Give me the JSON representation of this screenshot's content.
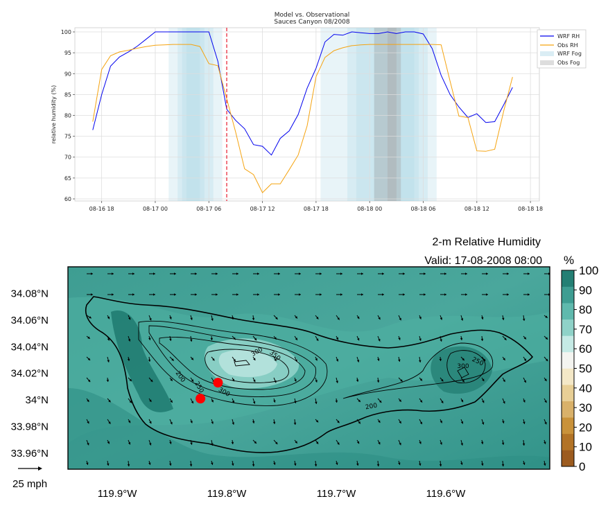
{
  "chart_data": [
    {
      "type": "line",
      "title": "Model vs. Observational",
      "subtitle": "Sauces Canyon 08/2008",
      "xlabel": "",
      "ylabel": "relative humidity (%)",
      "ylim": [
        59.5,
        101
      ],
      "xlim": [
        "2008-08-16 15:00",
        "2008-08-18 19:00"
      ],
      "x_ticks": [
        "08-16 18",
        "08-17 00",
        "08-17 06",
        "08-17 12",
        "08-17 18",
        "08-18 00",
        "08-18 06",
        "08-18 12",
        "08-18 18"
      ],
      "y_ticks": [
        60,
        65,
        70,
        75,
        80,
        85,
        90,
        95,
        100
      ],
      "grid": true,
      "legend_position": "top-right",
      "vline": {
        "x": "2008-08-17 08:00",
        "color": "#e8192c",
        "style": "dashed"
      },
      "series": [
        {
          "name": "WRF RH",
          "color": "#0000ee",
          "points": [
            [
              "2008-08-16 17:00",
              76.5
            ],
            [
              "2008-08-16 18:00",
              85
            ],
            [
              "2008-08-16 19:00",
              91.8
            ],
            [
              "2008-08-16 20:00",
              94
            ],
            [
              "2008-08-16 21:00",
              95.2
            ],
            [
              "2008-08-16 22:00",
              96.6
            ],
            [
              "2008-08-16 23:00",
              98.3
            ],
            [
              "2008-08-17 00:00",
              100
            ],
            [
              "2008-08-17 01:00",
              100
            ],
            [
              "2008-08-17 02:00",
              100
            ],
            [
              "2008-08-17 03:00",
              100
            ],
            [
              "2008-08-17 04:00",
              100
            ],
            [
              "2008-08-17 05:00",
              100
            ],
            [
              "2008-08-17 06:00",
              100
            ],
            [
              "2008-08-17 07:00",
              93
            ],
            [
              "2008-08-17 08:00",
              81.5
            ],
            [
              "2008-08-17 09:00",
              78.8
            ],
            [
              "2008-08-17 10:00",
              76.8
            ],
            [
              "2008-08-17 11:00",
              73
            ],
            [
              "2008-08-17 12:00",
              72.6
            ],
            [
              "2008-08-17 13:00",
              70.5
            ],
            [
              "2008-08-17 14:00",
              74.5
            ],
            [
              "2008-08-17 15:00",
              76.3
            ],
            [
              "2008-08-17 16:00",
              80.2
            ],
            [
              "2008-08-17 17:00",
              86.5
            ],
            [
              "2008-08-17 18:00",
              91.3
            ],
            [
              "2008-08-17 19:00",
              97.6
            ],
            [
              "2008-08-17 20:00",
              99.4
            ],
            [
              "2008-08-17 21:00",
              99.2
            ],
            [
              "2008-08-17 22:00",
              100
            ],
            [
              "2008-08-17 23:00",
              99.8
            ],
            [
              "2008-08-18 00:00",
              99.6
            ],
            [
              "2008-08-18 01:00",
              99.6
            ],
            [
              "2008-08-18 02:00",
              100
            ],
            [
              "2008-08-18 03:00",
              99.6
            ],
            [
              "2008-08-18 04:00",
              100
            ],
            [
              "2008-08-18 05:00",
              100
            ],
            [
              "2008-08-18 06:00",
              99.5
            ],
            [
              "2008-08-18 07:00",
              96
            ],
            [
              "2008-08-18 08:00",
              89.6
            ],
            [
              "2008-08-18 09:00",
              85
            ],
            [
              "2008-08-18 10:00",
              82
            ],
            [
              "2008-08-18 11:00",
              79.5
            ],
            [
              "2008-08-18 12:00",
              80.4
            ],
            [
              "2008-08-18 13:00",
              78.3
            ],
            [
              "2008-08-18 14:00",
              78.5
            ],
            [
              "2008-08-18 15:00",
              82.5
            ],
            [
              "2008-08-18 16:00",
              86.7
            ]
          ]
        },
        {
          "name": "Obs RH",
          "color": "#f5a30f",
          "points": [
            [
              "2008-08-16 17:00",
              78.5
            ],
            [
              "2008-08-16 18:00",
              91
            ],
            [
              "2008-08-16 19:00",
              94.3
            ],
            [
              "2008-08-16 20:00",
              95.2
            ],
            [
              "2008-08-16 21:00",
              95.6
            ],
            [
              "2008-08-16 22:00",
              96.1
            ],
            [
              "2008-08-16 23:00",
              96.5
            ],
            [
              "2008-08-17 00:00",
              96.8
            ],
            [
              "2008-08-17 01:00",
              96.9
            ],
            [
              "2008-08-17 02:00",
              97
            ],
            [
              "2008-08-17 03:00",
              97
            ],
            [
              "2008-08-17 04:00",
              97
            ],
            [
              "2008-08-17 05:00",
              96.5
            ],
            [
              "2008-08-17 06:00",
              92.4
            ],
            [
              "2008-08-17 07:00",
              91.9
            ],
            [
              "2008-08-17 08:00",
              84
            ],
            [
              "2008-08-17 09:00",
              76
            ],
            [
              "2008-08-17 10:00",
              67.2
            ],
            [
              "2008-08-17 11:00",
              65.8
            ],
            [
              "2008-08-17 12:00",
              61.5
            ],
            [
              "2008-08-17 13:00",
              63.6
            ],
            [
              "2008-08-17 14:00",
              63.6
            ],
            [
              "2008-08-17 15:00",
              67
            ],
            [
              "2008-08-17 16:00",
              70.5
            ],
            [
              "2008-08-17 17:00",
              77.5
            ],
            [
              "2008-08-17 18:00",
              89.3
            ],
            [
              "2008-08-17 19:00",
              93.9
            ],
            [
              "2008-08-17 20:00",
              95.5
            ],
            [
              "2008-08-17 21:00",
              96.2
            ],
            [
              "2008-08-17 22:00",
              96.7
            ],
            [
              "2008-08-17 23:00",
              96.9
            ],
            [
              "2008-08-18 00:00",
              97
            ],
            [
              "2008-08-18 01:00",
              97
            ],
            [
              "2008-08-18 02:00",
              97
            ],
            [
              "2008-08-18 03:00",
              97
            ],
            [
              "2008-08-18 04:00",
              97
            ],
            [
              "2008-08-18 05:00",
              97
            ],
            [
              "2008-08-18 06:00",
              97
            ],
            [
              "2008-08-18 07:00",
              97
            ],
            [
              "2008-08-18 08:00",
              96.9
            ],
            [
              "2008-08-18 09:00",
              88.2
            ],
            [
              "2008-08-18 10:00",
              79.8
            ],
            [
              "2008-08-18 11:00",
              79.5
            ],
            [
              "2008-08-18 12:00",
              71.5
            ],
            [
              "2008-08-18 13:00",
              71.4
            ],
            [
              "2008-08-18 14:00",
              71.9
            ],
            [
              "2008-08-18 15:00",
              81
            ],
            [
              "2008-08-18 16:00",
              89.2
            ]
          ]
        }
      ],
      "fog_spans": [
        {
          "name": "WRF Fog",
          "color": "#add8e6",
          "spans": [
            [
              "2008-08-17 01:30",
              "2008-08-17 07:30"
            ],
            [
              "2008-08-17 02:30",
              "2008-08-17 06:30"
            ],
            [
              "2008-08-17 03:00",
              "2008-08-17 05:30"
            ],
            [
              "2008-08-17 03:30",
              "2008-08-17 05:00"
            ],
            [
              "2008-08-17 18:30",
              "2008-08-18 07:30"
            ],
            [
              "2008-08-17 21:30",
              "2008-08-18 06:30"
            ],
            [
              "2008-08-17 22:30",
              "2008-08-18 05:30"
            ],
            [
              "2008-08-18 00:30",
              "2008-08-18 05:00"
            ]
          ]
        },
        {
          "name": "Obs Fog",
          "color": "#a9a9a9",
          "spans": [
            [
              "2008-08-18 00:30",
              "2008-08-18 03:30"
            ],
            [
              "2008-08-18 02:00",
              "2008-08-18 03:00"
            ]
          ]
        }
      ]
    },
    {
      "type": "heatmap",
      "title": "2-m Relative Humidity",
      "subtitle": "Valid: 17-08-2008 08:00",
      "colorbar_label": "%",
      "colorbar_ticks": [
        0,
        10,
        20,
        30,
        40,
        50,
        60,
        70,
        80,
        90,
        100
      ],
      "colorbar_colors": [
        "#9c5b1f",
        "#b27326",
        "#c9923a",
        "#d9b16a",
        "#e8cf96",
        "#f4e8c7",
        "#f4f4f0",
        "#c5eae5",
        "#8fd2c8",
        "#5fb9ad",
        "#3e9d92",
        "#247f74"
      ],
      "lat_ticks": [
        "34.08°N",
        "34.06°N",
        "34.04°N",
        "34.02°N",
        "34°N",
        "33.98°N",
        "33.96°N"
      ],
      "lon_ticks": [
        "119.9°W",
        "119.8°W",
        "119.7°W",
        "119.6°W"
      ],
      "lat_range": [
        33.948,
        34.1
      ],
      "lon_range": [
        -119.945,
        -119.505
      ],
      "contour_labels": [
        "300",
        "350",
        "200",
        "250",
        "300",
        "200",
        "300",
        "250"
      ],
      "stations": [
        {
          "lon": -119.808,
          "lat": 34.013,
          "color": "#ff0000"
        },
        {
          "lon": -119.824,
          "lat": 34.001,
          "color": "#ff0000"
        }
      ],
      "wind_key_label": "25 mph"
    }
  ]
}
